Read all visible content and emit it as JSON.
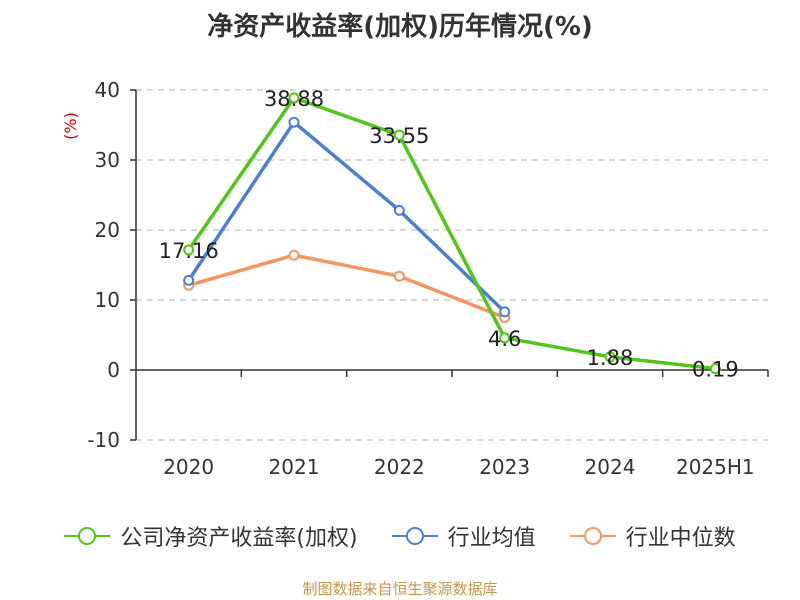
{
  "chart_data": {
    "type": "line",
    "title": "净资产收益率(加权)历年情况(%)",
    "ylabel": "(%)",
    "categories": [
      "2020",
      "2021",
      "2022",
      "2023",
      "2024",
      "2025H1"
    ],
    "ylim": [
      -10,
      40
    ],
    "yticks": [
      -10,
      0,
      10,
      20,
      30,
      40
    ],
    "grid": true,
    "legend_position": "bottom",
    "series": [
      {
        "name": "公司净资产收益率(加权)",
        "color": "#52c41a",
        "values": [
          17.16,
          38.88,
          33.55,
          4.6,
          1.88,
          0.19
        ],
        "labels": [
          "17.16",
          "38.88",
          "33.55",
          "4.6",
          "1.88",
          "0.19"
        ]
      },
      {
        "name": "行业均值",
        "color": "#4a7fd4",
        "values": [
          12.8,
          35.4,
          22.8,
          8.3,
          null,
          null
        ]
      },
      {
        "name": "行业中位数",
        "color": "#f59361",
        "values": [
          12.1,
          16.4,
          13.4,
          7.5,
          null,
          null
        ]
      }
    ]
  },
  "source": "制图数据来自恒生聚源数据库",
  "colors": {
    "axis_label": "#cc0000",
    "grid": "#cccccc",
    "text": "#333333"
  }
}
